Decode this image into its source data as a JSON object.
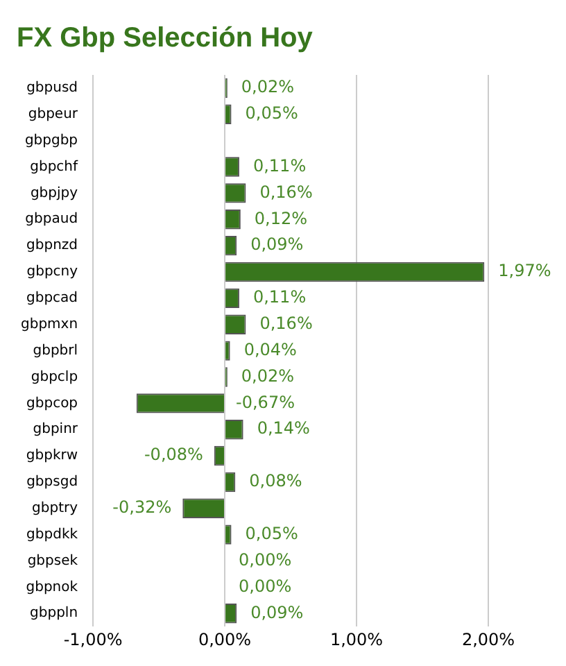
{
  "chart_data": {
    "type": "bar",
    "orientation": "horizontal",
    "title": "FX Gbp Selección Hoy",
    "categories": [
      "gbpusd",
      "gbpeur",
      "gbpgbp",
      "gbpchf",
      "gbpjpy",
      "gbpaud",
      "gbpnzd",
      "gbpcny",
      "gbpcad",
      "gbpmxn",
      "gbpbrl",
      "gbpclp",
      "gbpcop",
      "gbpinr",
      "gbpkrw",
      "gbpsgd",
      "gbptry",
      "gbpdkk",
      "gbpsek",
      "gbpnok",
      "gbppln"
    ],
    "values": [
      0.02,
      0.05,
      null,
      0.11,
      0.16,
      0.12,
      0.09,
      1.97,
      0.11,
      0.16,
      0.04,
      0.02,
      -0.67,
      0.14,
      -0.08,
      0.08,
      -0.32,
      0.05,
      0.0,
      0.0,
      0.09
    ],
    "value_labels": [
      "0,02%",
      "0,05%",
      null,
      "0,11%",
      "0,16%",
      "0,12%",
      "0,09%",
      "1,97%",
      "0,11%",
      "0,16%",
      "0,04%",
      "0,02%",
      "-0,67%",
      "0,14%",
      "-0,08%",
      "0,08%",
      "-0,32%",
      "0,05%",
      "0,00%",
      "0,00%",
      "0,09%"
    ],
    "color": "#38761d",
    "xlim": [
      -1,
      2
    ],
    "xticks": [
      {
        "value": -1,
        "label": "-1,00%"
      },
      {
        "value": 0,
        "label": "0,00%"
      },
      {
        "value": 1,
        "label": "1,00%"
      },
      {
        "value": 2,
        "label": "2,00%"
      }
    ],
    "grid": "x"
  }
}
